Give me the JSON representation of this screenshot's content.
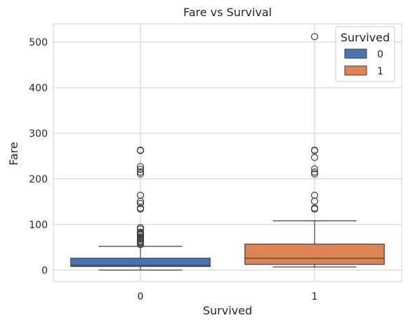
{
  "chart_data": {
    "type": "box",
    "title": "Fare vs Survival",
    "xlabel": "Survived",
    "ylabel": "Fare",
    "categories": [
      "0",
      "1"
    ],
    "ylim": [
      -25,
      540
    ],
    "yticks": [
      0,
      100,
      200,
      300,
      400,
      500
    ],
    "grid": true,
    "legend": {
      "title": "Survived",
      "placement": "top-right",
      "entries": [
        {
          "label": "0",
          "color": "#4c72b0"
        },
        {
          "label": "1",
          "color": "#dd8452"
        }
      ]
    },
    "series": [
      {
        "category": "0",
        "color": "#4c72b0",
        "min": 0,
        "q1": 7.9,
        "median": 10.5,
        "q3": 26,
        "max": 52,
        "outliers": [
          56,
          59,
          61,
          63,
          66,
          69,
          71,
          73,
          77,
          79,
          81,
          83,
          90,
          93,
          134,
          136,
          146,
          151,
          164,
          211,
          215,
          221,
          227,
          262,
          263
        ]
      },
      {
        "category": "1",
        "color": "#dd8452",
        "min": 6.9,
        "q1": 12.5,
        "median": 26,
        "q3": 57,
        "max": 108,
        "outliers": [
          134,
          136,
          151,
          164,
          211,
          215,
          222,
          247,
          262,
          263,
          512
        ]
      }
    ]
  }
}
